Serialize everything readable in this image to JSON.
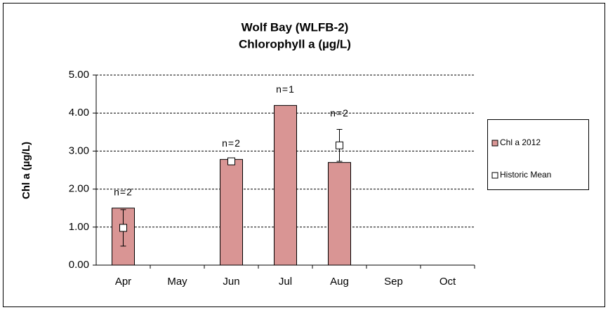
{
  "chart_data": {
    "type": "bar",
    "title": [
      "Wolf Bay (WLFB-2)",
      "Chlorophyll a (µg/L)"
    ],
    "y_label": "Chl a (µg/L)",
    "categories": [
      "Apr",
      "May",
      "Jun",
      "Jul",
      "Aug",
      "Sep",
      "Oct"
    ],
    "series": [
      {
        "name": "Chl a 2012",
        "type": "bar",
        "color": "#d99594",
        "values": [
          1.5,
          null,
          2.78,
          4.2,
          2.7,
          null,
          null
        ]
      },
      {
        "name": "Historic Mean",
        "type": "marker",
        "color": "#ffffff",
        "values": [
          0.98,
          null,
          2.73,
          null,
          3.15,
          null,
          null
        ],
        "errors": [
          0.48,
          null,
          0,
          null,
          0.42,
          null,
          null
        ]
      }
    ],
    "annotations": [
      "n=2",
      null,
      "n=2",
      "n=1",
      "n=2",
      null,
      null
    ],
    "ylim": [
      0,
      5
    ],
    "yticks": [
      {
        "value": 0,
        "label": "0.00"
      },
      {
        "value": 1,
        "label": "1.00"
      },
      {
        "value": 2,
        "label": "2.00"
      },
      {
        "value": 3,
        "label": "3.00"
      },
      {
        "value": 4,
        "label": "4.00"
      },
      {
        "value": 5,
        "label": "5.00"
      }
    ],
    "grid": true,
    "legend": "right"
  }
}
